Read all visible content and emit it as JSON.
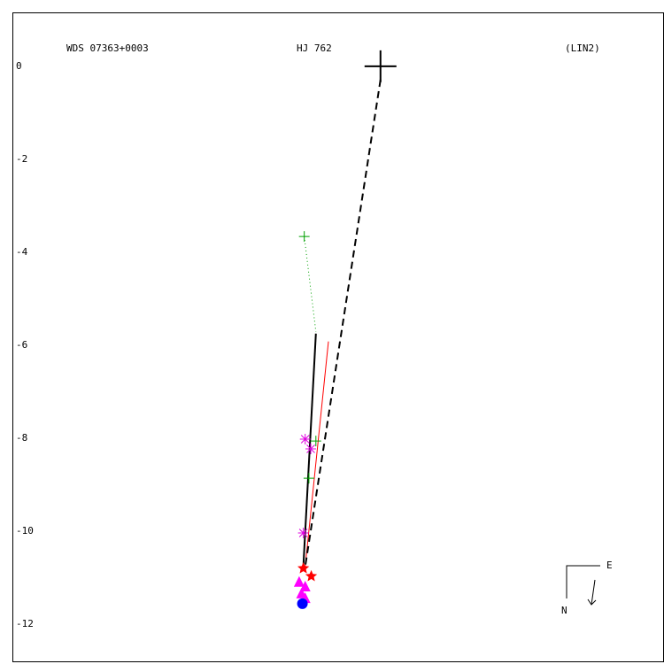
{
  "chart_data": {
    "type": "scatter",
    "title": "WDS 07363+0003",
    "subtitle": "HJ  762",
    "annotation": "(LIN2)",
    "xlim": [
      -7.92,
      6.1
    ],
    "ylim": [
      -12.82,
      1.16
    ],
    "yticks": [
      0,
      -2,
      -4,
      -6,
      -8,
      -10,
      -12
    ],
    "compass": {
      "east": "E",
      "north": "N"
    },
    "series": [
      {
        "marker": "dotted",
        "color": "#00a000",
        "x": [
          -1.64,
          -1.39
        ],
        "y": [
          -3.66,
          -5.71
        ]
      },
      {
        "marker": "solid",
        "color": "#000000",
        "x": [
          -1.39,
          -1.66
        ],
        "y": [
          -5.75,
          -10.76
        ]
      },
      {
        "marker": "solid",
        "color": "#ff0000",
        "x": [
          -1.12,
          -1.62
        ],
        "y": [
          -5.92,
          -10.76
        ]
      },
      {
        "marker": "dashed",
        "color": "#000000",
        "x": [
          0,
          -1.62
        ],
        "y": [
          -0.29,
          -10.76
        ]
      },
      {
        "marker": "plus",
        "color": "#00a000",
        "x": [
          -1.64,
          -1.39,
          -1.54
        ],
        "y": [
          -3.66,
          -8.06,
          -8.86
        ]
      },
      {
        "marker": "asterisk",
        "color": "#e000e0",
        "x": [
          -1.62,
          -1.5,
          -1.66
        ],
        "y": [
          -8.02,
          -8.23,
          -10.04
        ]
      },
      {
        "marker": "star",
        "color": "#ff0000",
        "x": [
          -1.66,
          -1.49
        ],
        "y": [
          -10.8,
          -10.97
        ]
      },
      {
        "marker": "triangle",
        "color": "#ff00ff",
        "x": [
          -1.75,
          -1.62,
          -1.7,
          -1.62
        ],
        "y": [
          -11.1,
          -11.2,
          -11.35,
          -11.45
        ]
      },
      {
        "marker": "circle",
        "color": "#0000ff",
        "x": [
          -1.68
        ],
        "y": [
          -11.56
        ]
      },
      {
        "marker": "primary",
        "color": "#000000",
        "x": [
          0
        ],
        "y": [
          0
        ]
      }
    ]
  }
}
